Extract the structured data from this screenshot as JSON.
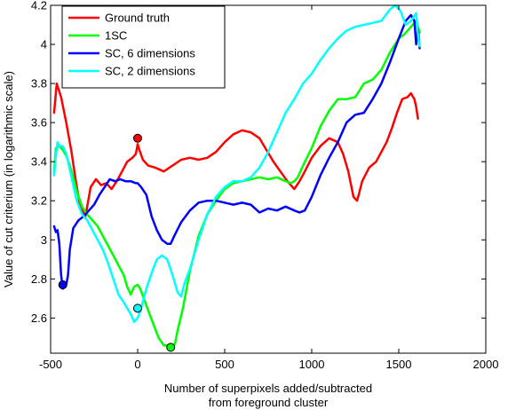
{
  "chart_data": {
    "type": "line",
    "xlabel": [
      "Number of superpixels added/subtracted",
      "from foreground cluster"
    ],
    "ylabel": "Value of cut criterium (in logarithmic scale)",
    "xlim": [
      -500,
      2000
    ],
    "ylim": [
      2.42,
      4.2
    ],
    "xticks": [
      -500,
      0,
      500,
      1000,
      1500,
      2000
    ],
    "yticks": [
      2.6,
      2.8,
      3,
      3.2,
      3.4,
      3.6,
      3.8,
      4,
      4.2
    ],
    "xtick_labels": [
      "-500",
      "0",
      "500",
      "1000",
      "1500",
      "2000"
    ],
    "ytick_labels": [
      "2.6",
      "2.8",
      "3",
      "3.2",
      "3.4",
      "3.6",
      "3.8",
      "4",
      "4.2"
    ],
    "grid": false,
    "legend_position": "top-left",
    "series": [
      {
        "name": "Ground truth",
        "color": "#ff0000",
        "x": [
          -480,
          -465,
          -440,
          -410,
          -380,
          -355,
          -330,
          -300,
          -270,
          -240,
          -210,
          -180,
          -150,
          -120,
          -90,
          -60,
          -30,
          -10,
          0,
          10,
          30,
          60,
          100,
          150,
          200,
          250,
          300,
          350,
          400,
          450,
          500,
          550,
          600,
          650,
          700,
          740,
          780,
          820,
          860,
          900,
          930,
          960,
          1000,
          1050,
          1100,
          1150,
          1180,
          1210,
          1240,
          1260,
          1270,
          1290,
          1330,
          1370,
          1400,
          1430,
          1460,
          1490,
          1520,
          1550,
          1570,
          1590,
          1600,
          1610
        ],
        "y": [
          3.65,
          3.8,
          3.73,
          3.6,
          3.45,
          3.3,
          3.17,
          3.12,
          3.27,
          3.31,
          3.28,
          3.29,
          3.26,
          3.3,
          3.35,
          3.4,
          3.42,
          3.44,
          3.49,
          3.46,
          3.41,
          3.38,
          3.37,
          3.35,
          3.38,
          3.41,
          3.42,
          3.41,
          3.42,
          3.45,
          3.5,
          3.54,
          3.56,
          3.55,
          3.52,
          3.46,
          3.4,
          3.35,
          3.3,
          3.26,
          3.3,
          3.35,
          3.42,
          3.48,
          3.52,
          3.5,
          3.44,
          3.35,
          3.22,
          3.2,
          3.23,
          3.3,
          3.37,
          3.4,
          3.45,
          3.5,
          3.57,
          3.65,
          3.72,
          3.73,
          3.75,
          3.72,
          3.68,
          3.62
        ],
        "marker": {
          "x": 0,
          "y": 3.52
        }
      },
      {
        "name": "1SC",
        "color": "#00ff00",
        "x": [
          -480,
          -470,
          -450,
          -430,
          -410,
          -390,
          -370,
          -350,
          -320,
          -290,
          -260,
          -230,
          -200,
          -170,
          -140,
          -110,
          -80,
          -60,
          -40,
          -20,
          0,
          15,
          35,
          60,
          90,
          120,
          150,
          180,
          200,
          215,
          230,
          260,
          300,
          350,
          400,
          450,
          500,
          550,
          600,
          650,
          700,
          750,
          800,
          850,
          880,
          900,
          920,
          950,
          1000,
          1050,
          1100,
          1150,
          1200,
          1250,
          1300,
          1350,
          1400,
          1450,
          1500,
          1530,
          1560,
          1580,
          1600,
          1610,
          1620
        ],
        "y": [
          3.35,
          3.47,
          3.48,
          3.46,
          3.43,
          3.38,
          3.32,
          3.25,
          3.17,
          3.13,
          3.1,
          3.07,
          3.02,
          2.97,
          2.92,
          2.87,
          2.82,
          2.76,
          2.72,
          2.76,
          2.77,
          2.75,
          2.7,
          2.64,
          2.57,
          2.5,
          2.46,
          2.46,
          2.45,
          2.47,
          2.54,
          2.65,
          2.84,
          3.02,
          3.13,
          3.2,
          3.26,
          3.29,
          3.3,
          3.31,
          3.32,
          3.31,
          3.32,
          3.3,
          3.29,
          3.3,
          3.32,
          3.38,
          3.47,
          3.58,
          3.66,
          3.72,
          3.72,
          3.73,
          3.8,
          3.82,
          3.87,
          3.96,
          4.03,
          4.05,
          4.08,
          4.1,
          4.12,
          4.09,
          4.06
        ],
        "marker": {
          "x": 190,
          "y": 2.45
        }
      },
      {
        "name": "SC, 6 dimensions",
        "color": "#0000ff",
        "x": [
          -480,
          -470,
          -460,
          -450,
          -440,
          -430,
          -420,
          -410,
          -400,
          -390,
          -370,
          -340,
          -310,
          -280,
          -250,
          -220,
          -190,
          -160,
          -130,
          -100,
          -70,
          -40,
          -10,
          0,
          20,
          50,
          80,
          110,
          140,
          170,
          190,
          210,
          250,
          300,
          350,
          400,
          450,
          500,
          550,
          600,
          650,
          700,
          750,
          800,
          850,
          900,
          930,
          960,
          1000,
          1050,
          1100,
          1150,
          1200,
          1250,
          1300,
          1350,
          1400,
          1450,
          1500,
          1540,
          1570,
          1590,
          1600,
          1610,
          1620
        ],
        "y": [
          3.07,
          3.04,
          3.05,
          2.98,
          2.82,
          2.75,
          2.76,
          2.77,
          2.82,
          2.95,
          3.06,
          3.1,
          3.12,
          3.15,
          3.18,
          3.23,
          3.27,
          3.31,
          3.3,
          3.31,
          3.3,
          3.3,
          3.29,
          3.29,
          3.27,
          3.23,
          3.12,
          3.05,
          3.0,
          2.98,
          2.98,
          3.02,
          3.09,
          3.15,
          3.19,
          3.2,
          3.2,
          3.19,
          3.18,
          3.19,
          3.18,
          3.14,
          3.16,
          3.15,
          3.17,
          3.15,
          3.14,
          3.15,
          3.22,
          3.33,
          3.42,
          3.5,
          3.6,
          3.64,
          3.65,
          3.72,
          3.8,
          3.91,
          4.03,
          4.12,
          4.15,
          4.12,
          4.0,
          4.08,
          3.98
        ],
        "marker": {
          "x": -430,
          "y": 2.77
        }
      },
      {
        "name": "SC, 2 dimensions",
        "color": "#00ffff",
        "x": [
          -480,
          -470,
          -460,
          -450,
          -430,
          -410,
          -390,
          -370,
          -350,
          -320,
          -290,
          -260,
          -230,
          -200,
          -170,
          -140,
          -110,
          -80,
          -60,
          -40,
          -20,
          0,
          20,
          50,
          80,
          110,
          140,
          170,
          200,
          230,
          250,
          270,
          300,
          350,
          400,
          450,
          500,
          550,
          600,
          650,
          700,
          750,
          800,
          850,
          900,
          950,
          1000,
          1050,
          1100,
          1150,
          1200,
          1250,
          1300,
          1350,
          1400,
          1450,
          1480,
          1510,
          1540,
          1570,
          1600,
          1610,
          1620
        ],
        "y": [
          3.33,
          3.43,
          3.5,
          3.48,
          3.48,
          3.44,
          3.36,
          3.28,
          3.2,
          3.13,
          3.1,
          3.05,
          3.0,
          2.95,
          2.88,
          2.8,
          2.72,
          2.68,
          2.65,
          2.62,
          2.58,
          2.6,
          2.65,
          2.75,
          2.83,
          2.9,
          2.92,
          2.9,
          2.82,
          2.73,
          2.71,
          2.78,
          2.85,
          3.0,
          3.13,
          3.22,
          3.27,
          3.3,
          3.3,
          3.32,
          3.37,
          3.45,
          3.55,
          3.65,
          3.72,
          3.8,
          3.85,
          3.92,
          3.98,
          4.03,
          4.07,
          4.09,
          4.1,
          4.11,
          4.12,
          4.18,
          4.2,
          4.17,
          4.1,
          4.12,
          4.16,
          4.05,
          3.99
        ],
        "marker": {
          "x": 0,
          "y": 2.65
        }
      }
    ]
  }
}
